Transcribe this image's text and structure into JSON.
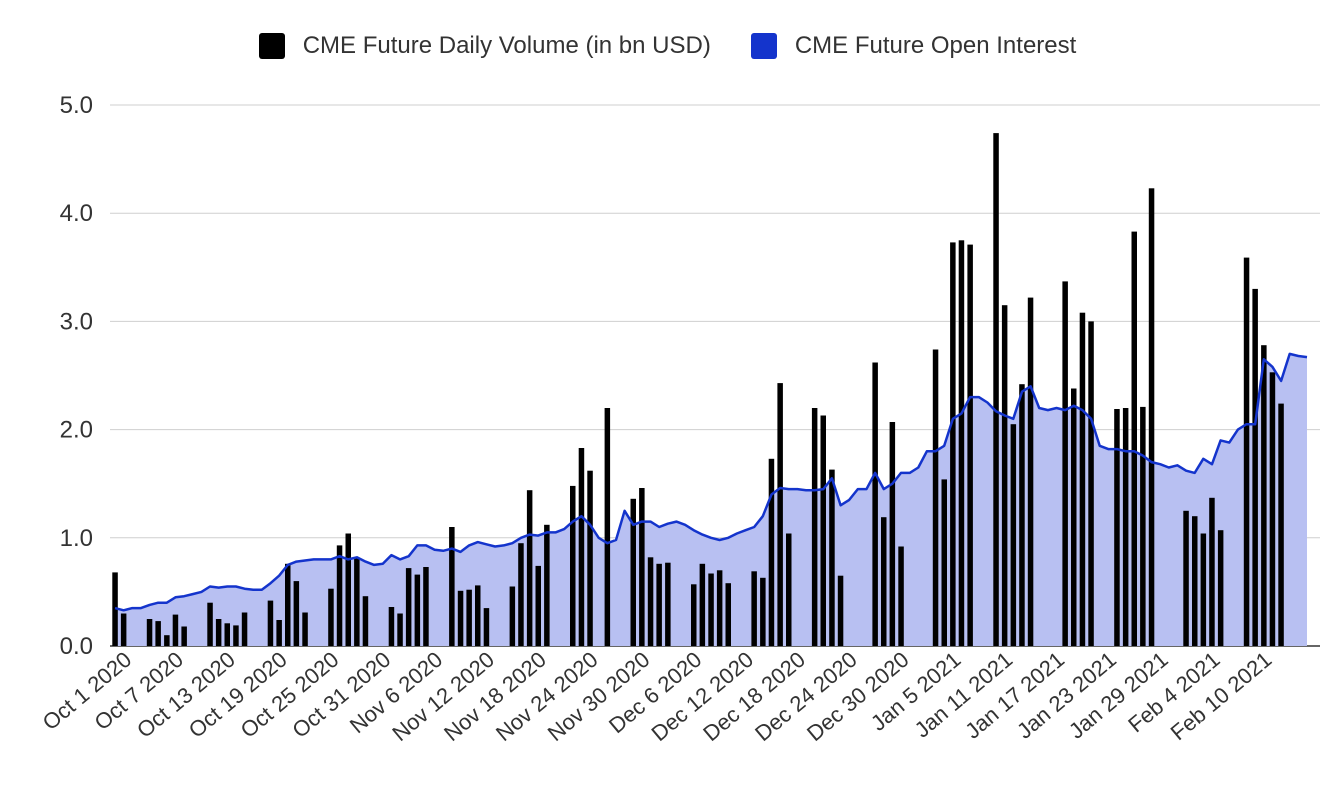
{
  "chart_data": {
    "type": "bar",
    "title": "",
    "xlabel": "",
    "ylabel": "",
    "ylim": [
      0,
      5
    ],
    "y_ticks": [
      "0.0",
      "1.0",
      "2.0",
      "3.0",
      "4.0",
      "5.0"
    ],
    "x_tick_labels": [
      "Oct 1 2020",
      "Oct 7 2020",
      "Oct 13 2020",
      "Oct 19 2020",
      "Oct 25 2020",
      "Oct 31 2020",
      "Nov 6 2020",
      "Nov 12 2020",
      "Nov 18 2020",
      "Nov 24 2020",
      "Nov 30 2020",
      "Dec 6 2020",
      "Dec 12 2020",
      "Dec 18 2020",
      "Dec 24 2020",
      "Dec 30 2020",
      "Jan 5 2021",
      "Jan 11 2021",
      "Jan 17 2021",
      "Jan 23 2021",
      "Jan 29 2021",
      "Feb 4 2021",
      "Feb 10 2021"
    ],
    "grid": true,
    "legend_position": "top",
    "start_date": "2020-10-01",
    "series": [
      {
        "name": "CME Future Daily Volume (in bn USD)",
        "kind": "bar",
        "color": "#000000",
        "values": [
          0.68,
          0.3,
          null,
          null,
          0.25,
          0.23,
          0.1,
          0.29,
          0.18,
          null,
          null,
          0.4,
          0.25,
          0.21,
          0.19,
          0.31,
          null,
          null,
          0.42,
          0.24,
          0.76,
          0.6,
          0.31,
          null,
          null,
          0.53,
          0.93,
          1.04,
          0.81,
          0.46,
          null,
          null,
          0.36,
          0.3,
          0.72,
          0.66,
          0.73,
          null,
          null,
          1.1,
          0.51,
          0.52,
          0.56,
          0.35,
          null,
          null,
          0.55,
          0.95,
          1.44,
          0.74,
          1.12,
          null,
          null,
          1.48,
          1.83,
          1.62,
          null,
          2.2,
          null,
          null,
          1.36,
          1.46,
          0.82,
          0.76,
          0.77,
          null,
          null,
          0.57,
          0.76,
          0.67,
          0.7,
          0.58,
          null,
          null,
          0.69,
          0.63,
          1.73,
          2.43,
          1.04,
          null,
          null,
          2.2,
          2.13,
          1.63,
          0.65,
          null,
          null,
          null,
          2.62,
          1.19,
          2.07,
          0.92,
          null,
          null,
          null,
          2.74,
          1.54,
          3.73,
          3.75,
          3.71,
          null,
          null,
          4.74,
          3.15,
          2.05,
          2.42,
          3.22,
          null,
          null,
          null,
          3.37,
          2.38,
          3.08,
          3.0,
          null,
          null,
          2.19,
          2.2,
          3.83,
          2.21,
          4.23,
          null,
          null,
          null,
          1.25,
          1.2,
          1.04,
          1.37,
          1.07,
          null,
          null,
          3.59,
          3.3,
          2.78,
          2.53,
          2.24,
          null
        ]
      },
      {
        "name": "CME Future Open Interest",
        "kind": "area",
        "color": "#1434cc",
        "fill": "#b8c0f2",
        "values": [
          0.35,
          0.33,
          0.35,
          0.35,
          0.38,
          0.4,
          0.4,
          0.45,
          0.46,
          0.48,
          0.5,
          0.55,
          0.54,
          0.55,
          0.55,
          0.53,
          0.52,
          0.52,
          0.58,
          0.65,
          0.75,
          0.78,
          0.79,
          0.8,
          0.8,
          0.8,
          0.83,
          0.8,
          0.82,
          0.78,
          0.75,
          0.76,
          0.84,
          0.8,
          0.83,
          0.93,
          0.93,
          0.89,
          0.88,
          0.9,
          0.87,
          0.93,
          0.96,
          0.94,
          0.92,
          0.93,
          0.95,
          1.0,
          1.03,
          1.02,
          1.05,
          1.05,
          1.08,
          1.15,
          1.2,
          1.12,
          1.0,
          0.95,
          0.98,
          1.25,
          1.12,
          1.15,
          1.15,
          1.1,
          1.13,
          1.15,
          1.12,
          1.07,
          1.03,
          1.0,
          0.98,
          1.0,
          1.04,
          1.07,
          1.1,
          1.2,
          1.4,
          1.46,
          1.45,
          1.45,
          1.44,
          1.44,
          1.45,
          1.55,
          1.3,
          1.35,
          1.45,
          1.45,
          1.6,
          1.45,
          1.5,
          1.6,
          1.6,
          1.65,
          1.8,
          1.8,
          1.85,
          2.1,
          2.15,
          2.3,
          2.3,
          2.25,
          2.17,
          2.13,
          2.1,
          2.35,
          2.4,
          2.2,
          2.18,
          2.2,
          2.18,
          2.22,
          2.18,
          2.1,
          1.85,
          1.82,
          1.82,
          1.8,
          1.8,
          1.76,
          1.7,
          1.68,
          1.65,
          1.67,
          1.62,
          1.6,
          1.73,
          1.68,
          1.9,
          1.88,
          2.0,
          2.05,
          2.05,
          2.65,
          2.58,
          2.45,
          2.7,
          2.68,
          2.67
        ]
      }
    ]
  }
}
